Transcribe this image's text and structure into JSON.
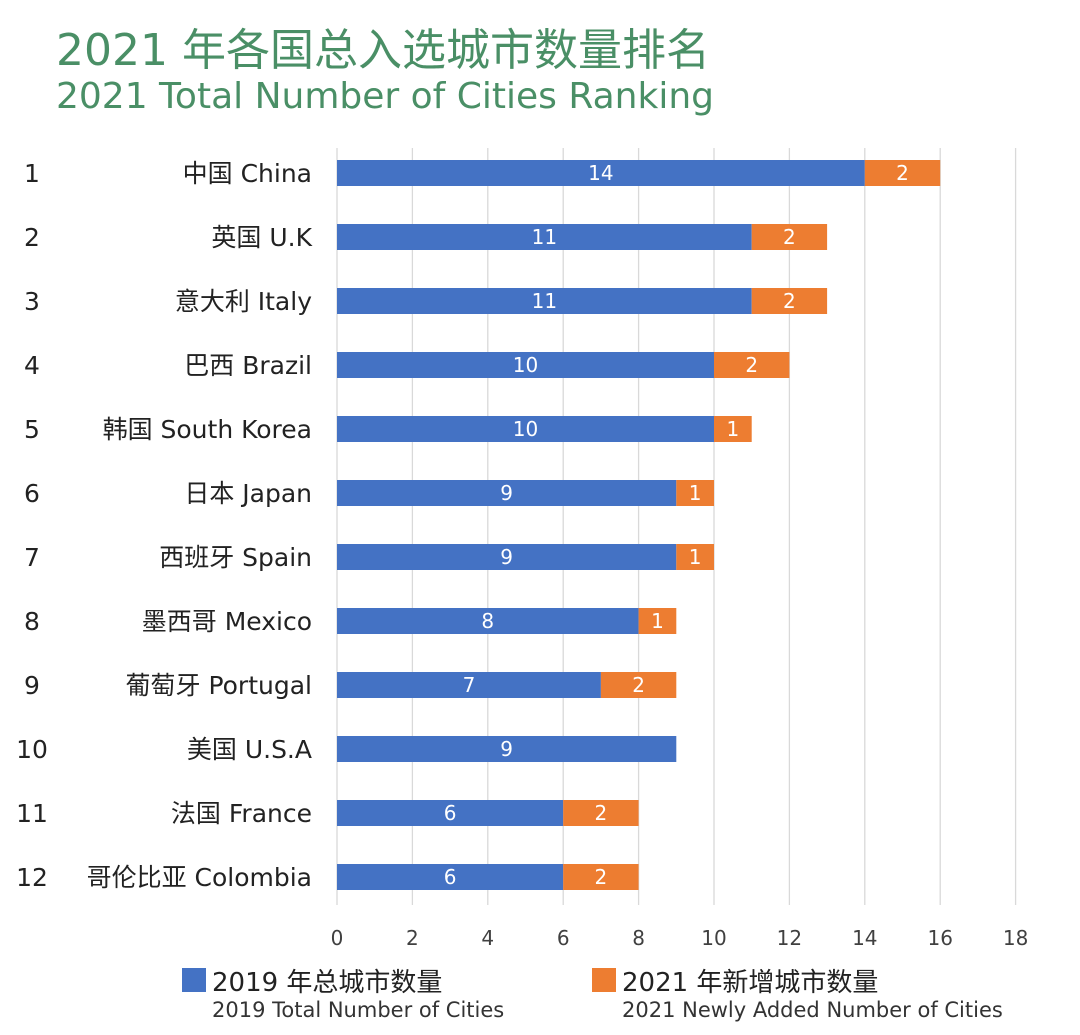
{
  "title": "2021 年各国总入选城市数量排名",
  "subtitle": "2021 Total Number of Cities Ranking",
  "colors": {
    "title": "#4a8f66",
    "series_2019": "#4472c4",
    "series_2021": "#ed7d31",
    "grid": "#d9d9d9"
  },
  "legend": [
    {
      "zh": "2019 年总城市数量",
      "en": "2019 Total Number of Cities",
      "color": "#4472c4"
    },
    {
      "zh": "2021 年新增城市数量",
      "en": "2021 Newly Added Number of Cities",
      "color": "#ed7d31"
    }
  ],
  "chart_data": {
    "type": "bar",
    "orientation": "horizontal",
    "stacked": true,
    "ranks": [
      "1",
      "2",
      "3",
      "4",
      "5",
      "6",
      "7",
      "8",
      "9",
      "10",
      "11",
      "12"
    ],
    "categories": [
      "中国 China",
      "英国 U.K",
      "意大利 Italy",
      "巴西 Brazil",
      "韩国 South Korea",
      "日本 Japan",
      "西班牙 Spain",
      "墨西哥 Mexico",
      "葡萄牙 Portugal",
      "美国 U.S.A",
      "法国 France",
      "哥伦比亚 Colombia"
    ],
    "series": [
      {
        "name": "2019 年总城市数量 2019 Total Number of Cities",
        "values": [
          14,
          11,
          11,
          10,
          10,
          9,
          9,
          8,
          7,
          9,
          6,
          6
        ]
      },
      {
        "name": "2021 年新增城市数量 2021 Newly Added Number of Cities",
        "values": [
          2,
          2,
          2,
          2,
          1,
          1,
          1,
          1,
          2,
          0,
          2,
          2
        ]
      }
    ],
    "xlim": [
      0,
      18
    ],
    "xticks": [
      0,
      2,
      4,
      6,
      8,
      10,
      12,
      14,
      16,
      18
    ],
    "grid": true,
    "legend_position": "bottom"
  }
}
